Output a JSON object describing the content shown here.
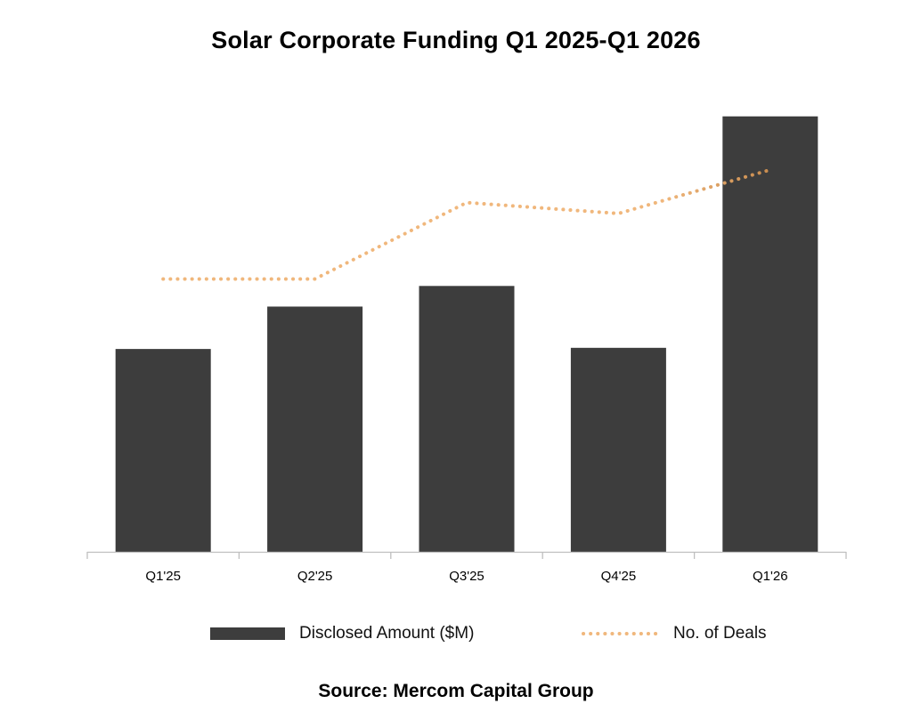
{
  "title": "Solar Corporate Funding Q1 2025-Q1 2026",
  "source": "Source: Mercom Capital Group",
  "colors": {
    "bar": "#3d3d3d",
    "line": "#f0b77c",
    "line_end": "#c98c4e",
    "axis": "#bfbfbf"
  },
  "chart_data": {
    "type": "bar",
    "categories": [
      "Q1'25",
      "Q2'25",
      "Q3'25",
      "Q4'25",
      "Q1'26"
    ],
    "series": [
      {
        "name": "Disclosed Amount ($M)",
        "type": "bar",
        "axis": "left",
        "values": [
          1770,
          2140,
          2320,
          1780,
          3800
        ]
      },
      {
        "name": "No. of Deals",
        "type": "line",
        "style": "dotted",
        "axis": "right",
        "values": [
          25,
          25,
          32,
          31,
          35
        ]
      }
    ],
    "y_left_range": [
      0,
      4000
    ],
    "y_right_range": [
      0,
      42
    ],
    "grid": false,
    "axis_values_shown": false,
    "legend_position": "bottom"
  },
  "legend": {
    "bar_label": "Disclosed Amount ($M)",
    "line_label": "No. of Deals"
  }
}
